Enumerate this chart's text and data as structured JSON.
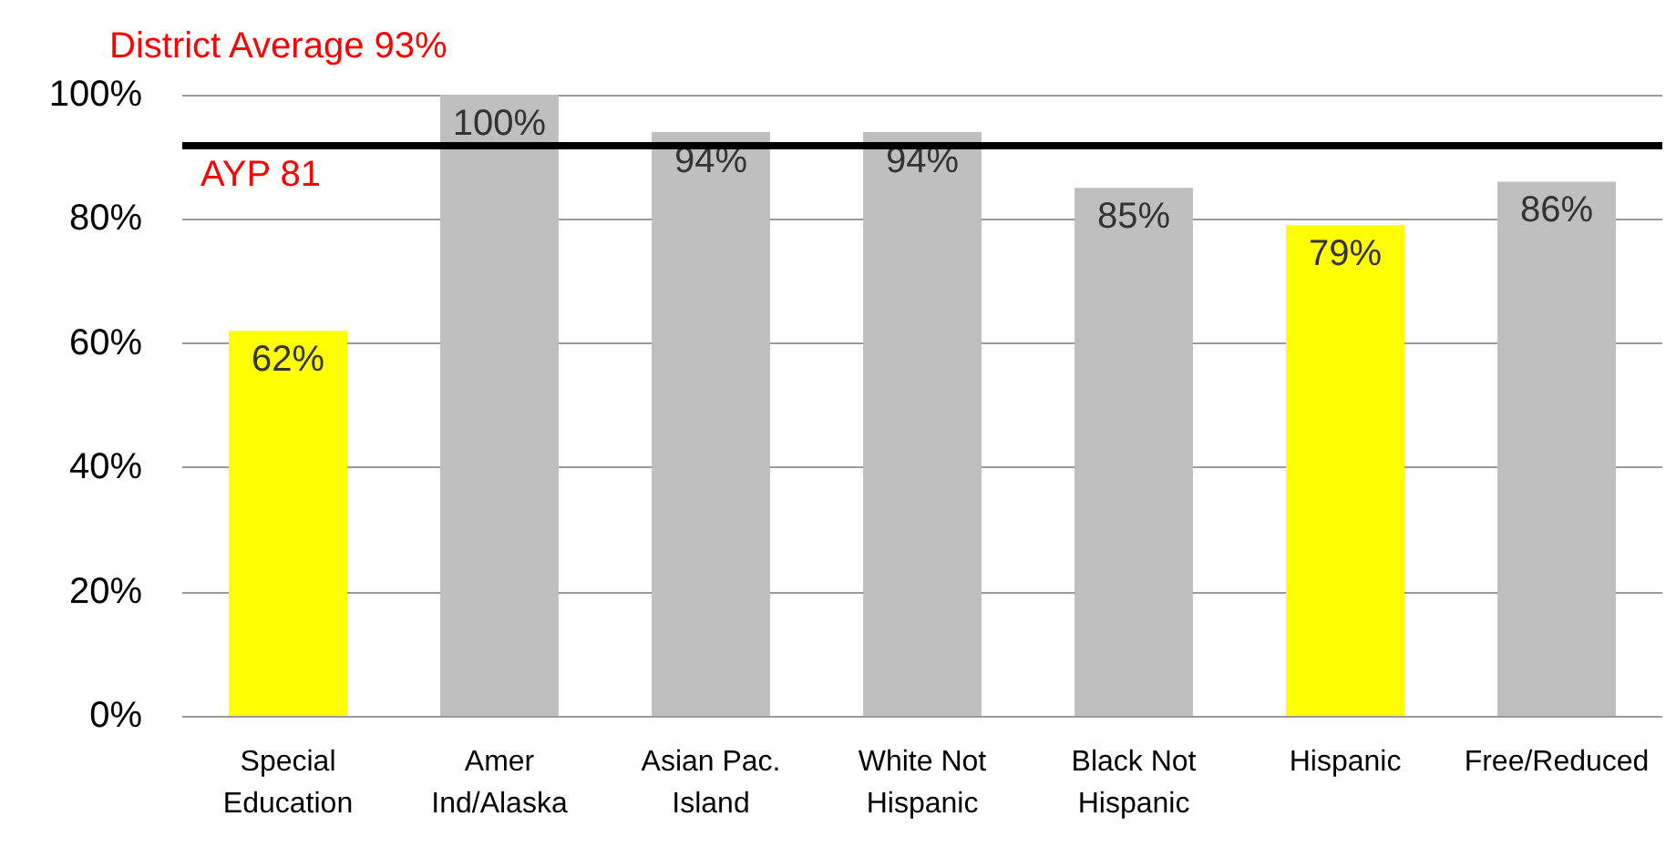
{
  "chart_data": {
    "type": "bar",
    "categories": [
      "Special\nEducation",
      "Amer\nInd/Alaska",
      "Asian Pac.\nIsland",
      "White Not\nHispanic",
      "Black Not\nHispanic",
      "Hispanic",
      "Free/Reduced"
    ],
    "values": [
      62,
      100,
      94,
      94,
      85,
      79,
      86
    ],
    "colors": [
      "#ffff00",
      "#bfbfbf",
      "#bfbfbf",
      "#bfbfbf",
      "#bfbfbf",
      "#ffff00",
      "#bfbfbf"
    ],
    "value_labels": [
      "62%",
      "100%",
      "94%",
      "94%",
      "85%",
      "79%",
      "86%"
    ],
    "ylim": [
      0,
      100
    ],
    "yticks": [
      {
        "value": 0,
        "label": "0%"
      },
      {
        "value": 20,
        "label": "20%"
      },
      {
        "value": 40,
        "label": "40%"
      },
      {
        "value": 60,
        "label": "60%"
      },
      {
        "value": 80,
        "label": "80%"
      },
      {
        "value": 100,
        "label": "100%"
      }
    ],
    "grid": "y",
    "ref_lines": [
      {
        "axis": "y",
        "value": 92,
        "label": "District Average 93%",
        "color": "#000000"
      }
    ],
    "annotations": [
      "AYP 81"
    ]
  }
}
